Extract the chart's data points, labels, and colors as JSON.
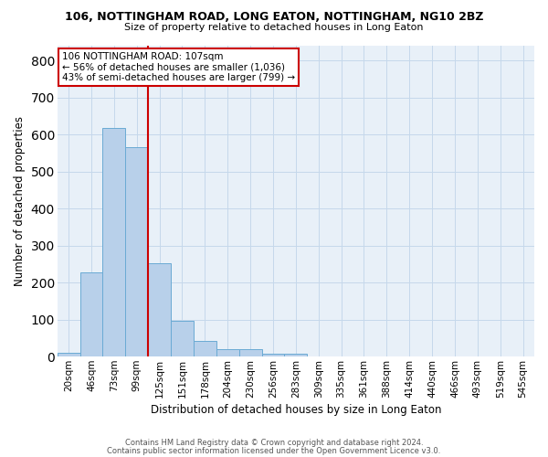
{
  "title_line1": "106, NOTTINGHAM ROAD, LONG EATON, NOTTINGHAM, NG10 2BZ",
  "title_line2": "Size of property relative to detached houses in Long Eaton",
  "xlabel": "Distribution of detached houses by size in Long Eaton",
  "ylabel": "Number of detached properties",
  "footer_line1": "Contains HM Land Registry data © Crown copyright and database right 2024.",
  "footer_line2": "Contains public sector information licensed under the Open Government Licence v3.0.",
  "categories": [
    "20sqm",
    "46sqm",
    "73sqm",
    "99sqm",
    "125sqm",
    "151sqm",
    "178sqm",
    "204sqm",
    "230sqm",
    "256sqm",
    "283sqm",
    "309sqm",
    "335sqm",
    "361sqm",
    "388sqm",
    "414sqm",
    "440sqm",
    "466sqm",
    "493sqm",
    "519sqm",
    "545sqm"
  ],
  "values": [
    10,
    228,
    617,
    567,
    253,
    96,
    42,
    20,
    20,
    7,
    7,
    0,
    0,
    0,
    0,
    0,
    0,
    0,
    0,
    0,
    0
  ],
  "bar_color": "#b8d0ea",
  "bar_edge_color": "#6aaad4",
  "grid_color": "#c5d8eb",
  "bg_color": "#e8f0f8",
  "vline_color": "#cc0000",
  "vline_pos": 3.5,
  "annotation_text": "106 NOTTINGHAM ROAD: 107sqm\n← 56% of detached houses are smaller (1,036)\n43% of semi-detached houses are larger (799) →",
  "annotation_box_facecolor": "#ffffff",
  "annotation_box_edgecolor": "#cc0000",
  "ylim": [
    0,
    840
  ],
  "yticks": [
    0,
    100,
    200,
    300,
    400,
    500,
    600,
    700,
    800
  ]
}
